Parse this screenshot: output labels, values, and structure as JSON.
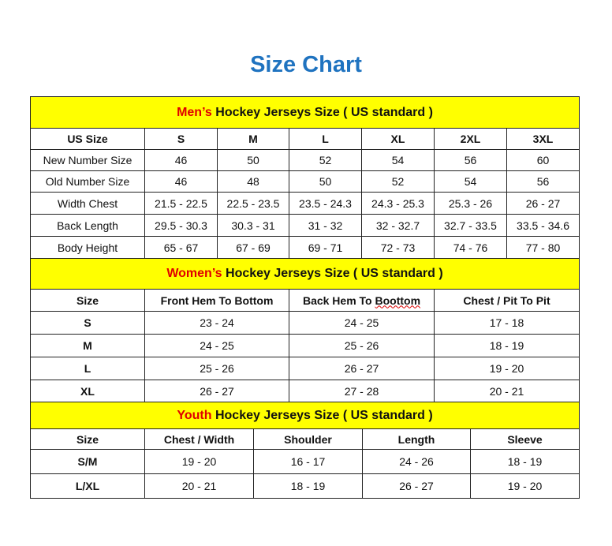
{
  "title": "Size Chart",
  "colors": {
    "title": "#1f73c0",
    "section_bg": "#ffff00",
    "highlight": "#e00000"
  },
  "men": {
    "caption_highlight": "Men’s",
    "caption_rest": " Hockey Jerseys Size ( US standard )",
    "headers": [
      "US Size",
      "S",
      "M",
      "L",
      "XL",
      "2XL",
      "3XL"
    ],
    "rows": [
      [
        "New Number Size",
        "46",
        "50",
        "52",
        "54",
        "56",
        "60"
      ],
      [
        "Old Number Size",
        "46",
        "48",
        "50",
        "52",
        "54",
        "56"
      ],
      [
        "Width Chest",
        "21.5 - 22.5",
        "22.5 - 23.5",
        "23.5 - 24.3",
        "24.3 - 25.3",
        "25.3 - 26",
        "26 - 27"
      ],
      [
        "Back Length",
        "29.5 - 30.3",
        "30.3 - 31",
        "31 - 32",
        "32 - 32.7",
        "32.7 - 33.5",
        "33.5 - 34.6"
      ],
      [
        "Body Height",
        "65 - 67",
        "67 - 69",
        "69 - 71",
        "72 - 73",
        "74 - 76",
        "77 - 80"
      ]
    ]
  },
  "women": {
    "caption_highlight": "Women’s",
    "caption_rest": " Hockey Jerseys Size ( US standard )",
    "headers": [
      "Size",
      "Front Hem To Bottom",
      "Back Hem To Boottom",
      "Chest / Pit To Pit"
    ],
    "rows": [
      [
        "S",
        "23 - 24",
        "24 - 25",
        "17 - 18"
      ],
      [
        "M",
        "24 - 25",
        "25 - 26",
        "18 - 19"
      ],
      [
        "L",
        "25 - 26",
        "26 - 27",
        "19 - 20"
      ],
      [
        "XL",
        "26 - 27",
        "27 - 28",
        "20 - 21"
      ]
    ]
  },
  "youth": {
    "caption_highlight": "Youth",
    "caption_rest": " Hockey Jerseys Size ( US standard )",
    "headers": [
      "Size",
      "Chest / Width",
      "Shoulder",
      "Length",
      "Sleeve"
    ],
    "rows": [
      [
        "S/M",
        "19 - 20",
        "16 - 17",
        "24 - 26",
        "18 - 19"
      ],
      [
        "L/XL",
        "20 - 21",
        "18 - 19",
        "26 - 27",
        "19 - 20"
      ]
    ]
  }
}
